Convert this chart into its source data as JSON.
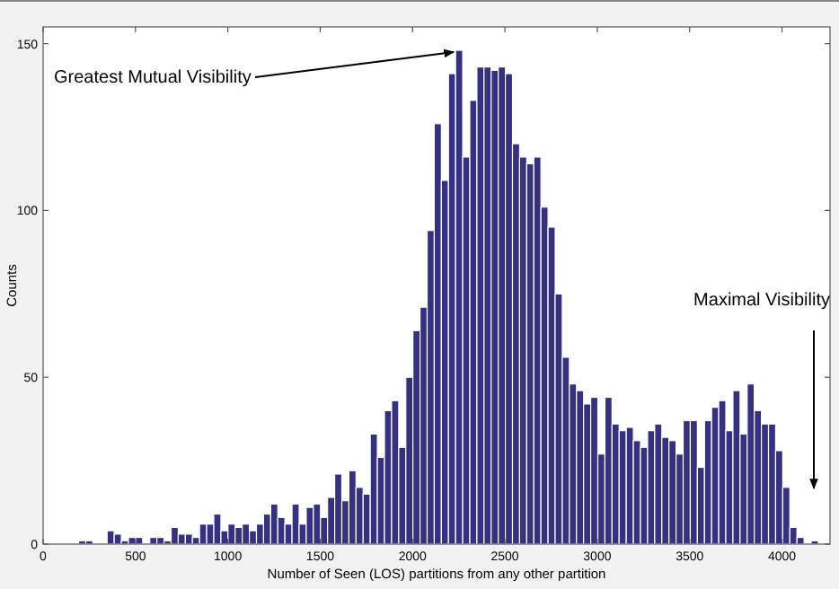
{
  "chart_data": {
    "type": "histogram",
    "xlabel": "Number of Seen (LOS) partitions from any other partition",
    "ylabel": "Counts",
    "color": "#35307f",
    "bins": [
      0,
      38.5,
      77,
      115.5,
      154,
      192.5,
      231,
      269.5,
      308,
      346.5,
      385,
      423.5,
      462,
      500.5,
      539,
      577.5,
      616,
      654.5,
      693,
      731.5,
      770,
      808.5,
      847,
      885.5,
      924,
      962.5,
      1001,
      1039.5,
      1078,
      1116.5,
      1155,
      1193.5,
      1232,
      1270.5,
      1309,
      1347.5,
      1386,
      1424.5,
      1463,
      1501.5,
      1540,
      1578.5,
      1617,
      1655.5,
      1694,
      1732.5,
      1771,
      1809.5,
      1848,
      1886.5,
      1925,
      1963.5,
      2002,
      2040.5,
      2079,
      2117.5,
      2156,
      2194.5,
      2233,
      2271.5,
      2310,
      2348.5,
      2387,
      2425.5,
      2464,
      2502.5,
      2541,
      2579.5,
      2618,
      2656.5,
      2695,
      2733.5,
      2772,
      2810.5,
      2849,
      2887.5,
      2926,
      2964.5,
      3003,
      3041.5,
      3080,
      3118.5,
      3157,
      3195.5,
      3234,
      3272.5,
      3311,
      3349.5,
      3388,
      3426.5,
      3465,
      3503.5,
      3542,
      3580.5,
      3619,
      3657.5,
      3696,
      3734.5,
      3773,
      3811.5,
      3850,
      3888.5,
      3927,
      3965.5,
      4004,
      4042.5,
      4081,
      4119.5,
      4158,
      4196.5,
      4235
    ],
    "values": [
      0,
      0,
      0,
      0,
      0,
      1,
      1,
      0,
      0,
      4,
      3,
      1,
      2,
      2,
      0,
      2,
      2,
      1,
      5,
      3,
      3,
      2,
      6,
      6,
      9,
      4,
      6,
      5,
      6,
      4,
      6,
      9,
      12,
      8,
      6,
      12,
      6,
      11,
      12,
      8,
      14,
      21,
      13,
      22,
      17,
      15,
      33,
      26,
      40,
      43,
      29,
      50,
      64,
      71,
      94,
      126,
      109,
      141,
      148,
      116,
      133,
      143,
      143,
      142,
      143,
      141,
      120,
      116,
      114,
      116,
      101,
      95,
      75,
      56,
      48,
      46,
      42,
      44,
      27,
      44,
      36,
      34,
      35,
      31,
      29,
      34,
      36,
      32,
      31,
      27,
      37,
      37,
      23,
      37,
      41,
      43,
      34,
      46,
      33,
      48,
      40,
      36,
      36,
      28,
      17,
      5,
      2,
      0,
      1,
      0
    ],
    "xlim": [
      0,
      4260
    ],
    "ylim": [
      0,
      155
    ],
    "xticks": [
      0,
      500,
      1000,
      1500,
      2000,
      2500,
      3000,
      3500,
      4000
    ],
    "yticks": [
      0,
      50,
      100,
      150
    ],
    "annotations": [
      {
        "text": "Greatest Mutual Visibility",
        "x": 2252,
        "y": 148
      },
      "Maximal Visibility"
    ]
  }
}
